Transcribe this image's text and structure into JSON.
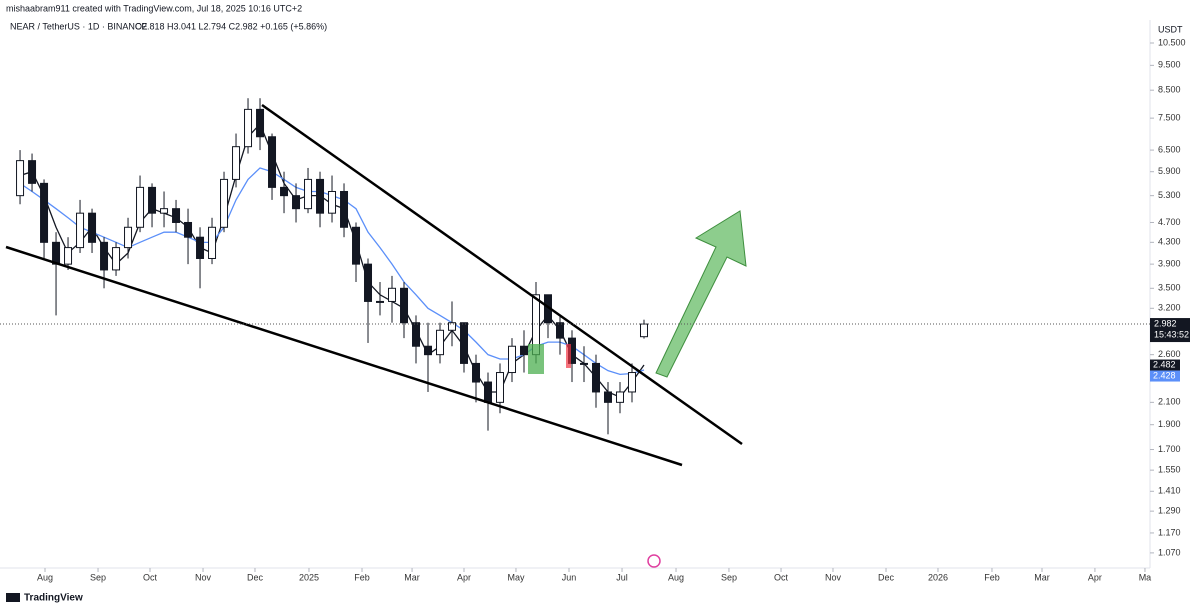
{
  "chart_data": {
    "type": "candlestick",
    "attribution": "mishaabram911 created with TradingView.com, Jul 18, 2025 10:16 UTC+2",
    "title": "NEAR / TetherUS · 1D · BINANCE",
    "ohlc_text": "O2.818 H3.041 L2.794 C2.982 +0.165 (+5.86%)",
    "currency": "USDT",
    "countdown": "15:43:52",
    "brand": "TradingView",
    "categories": [
      null,
      null,
      null,
      null,
      null,
      null,
      null,
      null,
      null,
      null,
      null,
      null,
      null,
      null,
      null,
      null,
      null,
      null,
      null,
      null,
      null,
      null,
      null,
      null,
      null,
      null,
      null,
      null,
      null,
      null,
      null,
      null,
      null,
      null,
      null,
      null,
      null,
      null,
      null,
      null,
      null,
      null,
      null,
      null,
      null,
      null,
      null,
      null,
      null,
      null,
      null,
      null,
      null
    ],
    "open": [
      5.3,
      6.2,
      5.6,
      4.3,
      3.9,
      4.2,
      4.9,
      4.3,
      3.8,
      4.2,
      4.6,
      5.5,
      4.9,
      5.0,
      4.7,
      4.4,
      4.0,
      4.6,
      5.7,
      6.6,
      7.8,
      6.9,
      5.5,
      5.3,
      5.0,
      5.7,
      4.9,
      5.4,
      4.6,
      3.9,
      3.3,
      3.3,
      3.5,
      3.0,
      2.7,
      2.6,
      2.9,
      3.0,
      2.5,
      2.3,
      2.1,
      2.4,
      2.7,
      2.6,
      3.4,
      3.0,
      2.8,
      2.5,
      2.5,
      2.2,
      2.1,
      2.2,
      2.818
    ],
    "high": [
      6.5,
      6.4,
      5.7,
      4.5,
      4.4,
      5.2,
      5.0,
      4.4,
      4.3,
      4.8,
      5.8,
      5.6,
      5.4,
      5.2,
      5.0,
      4.6,
      4.8,
      5.9,
      7.0,
      8.2,
      8.2,
      7.0,
      5.9,
      5.6,
      6.0,
      5.9,
      5.8,
      5.6,
      4.7,
      4.0,
      3.6,
      3.7,
      3.6,
      3.1,
      3.0,
      3.0,
      3.3,
      3.0,
      2.6,
      2.4,
      2.5,
      2.8,
      2.9,
      3.6,
      3.4,
      3.1,
      2.9,
      2.7,
      2.6,
      2.3,
      2.3,
      2.5,
      3.041
    ],
    "low": [
      5.1,
      5.4,
      4.0,
      3.1,
      3.8,
      4.1,
      4.1,
      3.5,
      3.7,
      4.0,
      4.5,
      4.6,
      4.6,
      4.5,
      3.9,
      3.5,
      3.9,
      4.5,
      5.5,
      6.4,
      6.5,
      5.2,
      4.9,
      4.7,
      4.9,
      4.6,
      4.7,
      4.4,
      3.6,
      2.74,
      3.1,
      3.0,
      2.8,
      2.5,
      2.2,
      2.5,
      2.7,
      2.4,
      2.1,
      1.85,
      2.0,
      2.3,
      2.4,
      2.5,
      2.8,
      2.6,
      2.3,
      2.3,
      2.05,
      1.82,
      2.0,
      2.1,
      2.794
    ],
    "close": [
      6.2,
      5.6,
      4.3,
      3.9,
      4.2,
      4.9,
      4.3,
      3.8,
      4.2,
      4.6,
      5.5,
      4.9,
      5.0,
      4.7,
      4.4,
      4.0,
      4.6,
      5.7,
      6.6,
      7.8,
      6.9,
      5.5,
      5.3,
      5.0,
      5.7,
      4.9,
      5.4,
      4.6,
      3.9,
      3.3,
      3.3,
      3.5,
      3.0,
      2.7,
      2.6,
      2.9,
      3.0,
      2.5,
      2.3,
      2.1,
      2.4,
      2.7,
      2.6,
      3.4,
      3.0,
      2.8,
      2.5,
      2.5,
      2.2,
      2.1,
      2.2,
      2.4,
      2.982
    ],
    "up_color": "#ffffff",
    "down_color": "#131722",
    "series": [
      {
        "color": "#131722",
        "values": [
          5.8,
          5.9,
          5.3,
          4.6,
          4.1,
          4.3,
          4.6,
          4.2,
          3.9,
          4.1,
          4.7,
          5.0,
          4.9,
          4.8,
          4.6,
          4.2,
          4.1,
          4.8,
          5.8,
          6.9,
          7.3,
          6.4,
          5.6,
          5.2,
          5.3,
          5.3,
          5.1,
          5.0,
          4.3,
          3.6,
          3.4,
          3.3,
          3.2,
          2.9,
          2.6,
          2.7,
          2.9,
          2.7,
          2.4,
          2.2,
          2.2,
          2.5,
          2.6,
          2.9,
          3.1,
          2.9,
          2.6,
          2.5,
          2.35,
          2.2,
          2.15,
          2.3,
          2.482
        ]
      },
      {
        "color": "#5b8ff9",
        "values": [
          5.6,
          5.4,
          5.2,
          5.0,
          4.8,
          4.6,
          4.5,
          4.4,
          4.3,
          4.2,
          4.3,
          4.4,
          4.5,
          4.5,
          4.4,
          4.3,
          4.3,
          4.6,
          5.2,
          5.7,
          6.0,
          5.9,
          5.7,
          5.5,
          5.4,
          5.4,
          5.3,
          5.2,
          5.0,
          4.5,
          4.2,
          3.9,
          3.6,
          3.4,
          3.2,
          3.1,
          3.0,
          2.9,
          2.75,
          2.6,
          2.55,
          2.55,
          2.6,
          2.7,
          2.75,
          2.75,
          2.7,
          2.6,
          2.5,
          2.42,
          2.38,
          2.39,
          2.428
        ]
      }
    ],
    "log_scale": true,
    "ylim": [
      1.0,
      11.64
    ],
    "yticks": [
      {
        "value": 10.5,
        "label": "10.500"
      },
      {
        "value": 9.5,
        "label": "9.500"
      },
      {
        "value": 8.5,
        "label": "8.500"
      },
      {
        "value": 7.5,
        "label": "7.500"
      },
      {
        "value": 6.5,
        "label": "6.500"
      },
      {
        "value": 5.9,
        "label": "5.900"
      },
      {
        "value": 5.3,
        "label": "5.300"
      },
      {
        "value": 4.7,
        "label": "4.700"
      },
      {
        "value": 4.3,
        "label": "4.300"
      },
      {
        "value": 3.9,
        "label": "3.900"
      },
      {
        "value": 3.5,
        "label": "3.500"
      },
      {
        "value": 3.2,
        "label": "3.200"
      },
      {
        "value": 2.6,
        "label": "2.600"
      },
      {
        "value": 2.1,
        "label": "2.100"
      },
      {
        "value": 1.9,
        "label": "1.900"
      },
      {
        "value": 1.7,
        "label": "1.700"
      },
      {
        "value": 1.55,
        "label": "1.550"
      },
      {
        "value": 1.41,
        "label": "1.410"
      },
      {
        "value": 1.29,
        "label": "1.290"
      },
      {
        "value": 1.17,
        "label": "1.170"
      },
      {
        "value": 1.07,
        "label": "1.070"
      }
    ],
    "xlim": [
      -1.67,
      94.17
    ],
    "xticks": [
      {
        "value": 2.08,
        "label": "Aug"
      },
      {
        "value": 6.5,
        "label": "Sep"
      },
      {
        "value": 10.83,
        "label": "Oct"
      },
      {
        "value": 15.25,
        "label": "Nov"
      },
      {
        "value": 19.58,
        "label": "Dec"
      },
      {
        "value": 24.08,
        "label": "2025"
      },
      {
        "value": 28.5,
        "label": "Feb"
      },
      {
        "value": 32.67,
        "label": "Mar"
      },
      {
        "value": 37,
        "label": "Apr"
      },
      {
        "value": 41.33,
        "label": "May"
      },
      {
        "value": 45.75,
        "label": "Jun"
      },
      {
        "value": 50.17,
        "label": "Jul"
      },
      {
        "value": 54.67,
        "label": "Aug"
      },
      {
        "value": 59.08,
        "label": "Sep"
      },
      {
        "value": 63.42,
        "label": "Oct"
      },
      {
        "value": 67.75,
        "label": "Nov"
      },
      {
        "value": 72.17,
        "label": "Dec"
      },
      {
        "value": 76.5,
        "label": "2026"
      },
      {
        "value": 81,
        "label": "Feb"
      },
      {
        "value": 85.17,
        "label": "Mar"
      },
      {
        "value": 89.58,
        "label": "Apr"
      },
      {
        "value": 93.75,
        "label": "Ma"
      }
    ]
  }
}
